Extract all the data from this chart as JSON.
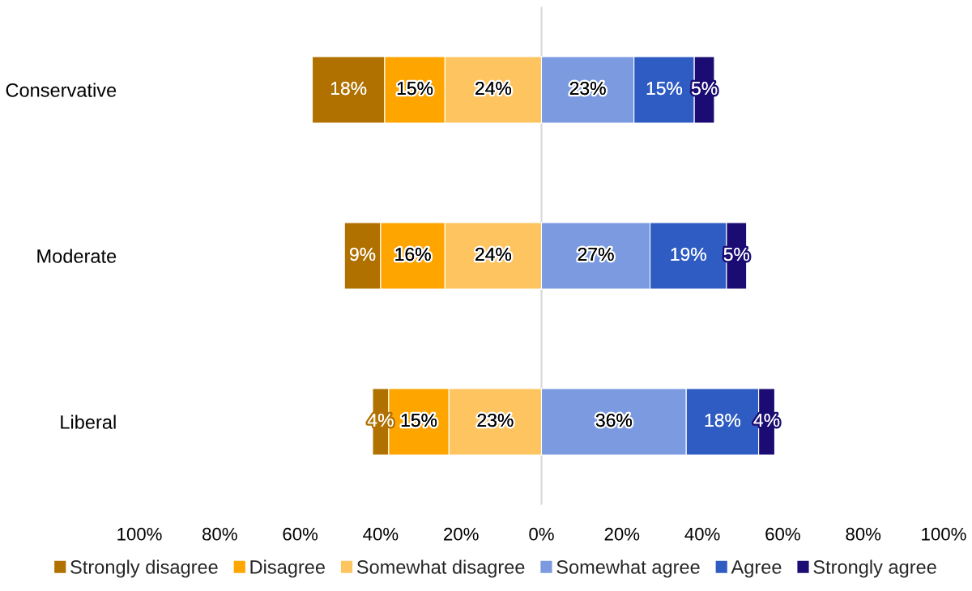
{
  "chart_data": {
    "type": "bar",
    "orientation": "horizontal",
    "categories": [
      "Conservative",
      "Moderate",
      "Liberal"
    ],
    "series": [
      {
        "name": "Strongly disagree",
        "color": "#b07100",
        "base": [
          -57,
          -49,
          -42
        ],
        "values": [
          18,
          9,
          4
        ],
        "value_labels": [
          "18%",
          "9%",
          "4%"
        ]
      },
      {
        "name": "Disagree",
        "color": "#ffa500",
        "base": [
          -39,
          -40,
          -38
        ],
        "values": [
          15,
          16,
          15
        ],
        "value_labels": [
          "15%",
          "16%",
          "15%"
        ]
      },
      {
        "name": "Somewhat disagree",
        "color": "#fdc45f",
        "base": [
          -24,
          -24,
          -23
        ],
        "values": [
          24,
          24,
          23
        ],
        "value_labels": [
          "24%",
          "24%",
          "23%"
        ]
      },
      {
        "name": "Somewhat agree",
        "color": "#7b9ae0",
        "base": [
          0,
          0,
          0
        ],
        "values": [
          23,
          27,
          36
        ],
        "value_labels": [
          "23%",
          "27%",
          "36%"
        ]
      },
      {
        "name": "Agree",
        "color": "#2f5cc3",
        "base": [
          23,
          27,
          36
        ],
        "values": [
          15,
          19,
          18
        ],
        "value_labels": [
          "15%",
          "19%",
          "18%"
        ]
      },
      {
        "name": "Strongly agree",
        "color": "#1b0c73",
        "base": [
          38,
          46,
          54
        ],
        "values": [
          5,
          5,
          4
        ],
        "value_labels": [
          "5%",
          "5%",
          "4%"
        ]
      }
    ],
    "xlim": [
      -100,
      100
    ],
    "xticks": [
      {
        "value": -100,
        "label": "100%"
      },
      {
        "value": -80,
        "label": "80%"
      },
      {
        "value": -60,
        "label": "60%"
      },
      {
        "value": -40,
        "label": "40%"
      },
      {
        "value": -20,
        "label": "20%"
      },
      {
        "value": 0,
        "label": "0%"
      },
      {
        "value": 20,
        "label": "20%"
      },
      {
        "value": 40,
        "label": "40%"
      },
      {
        "value": 60,
        "label": "60%"
      },
      {
        "value": 80,
        "label": "80%"
      },
      {
        "value": 100,
        "label": "100%"
      }
    ],
    "ref_lines": [
      {
        "axis": "x",
        "value": 0,
        "color": "#d9d9d9"
      }
    ],
    "grid": false,
    "legend": "bottom"
  }
}
